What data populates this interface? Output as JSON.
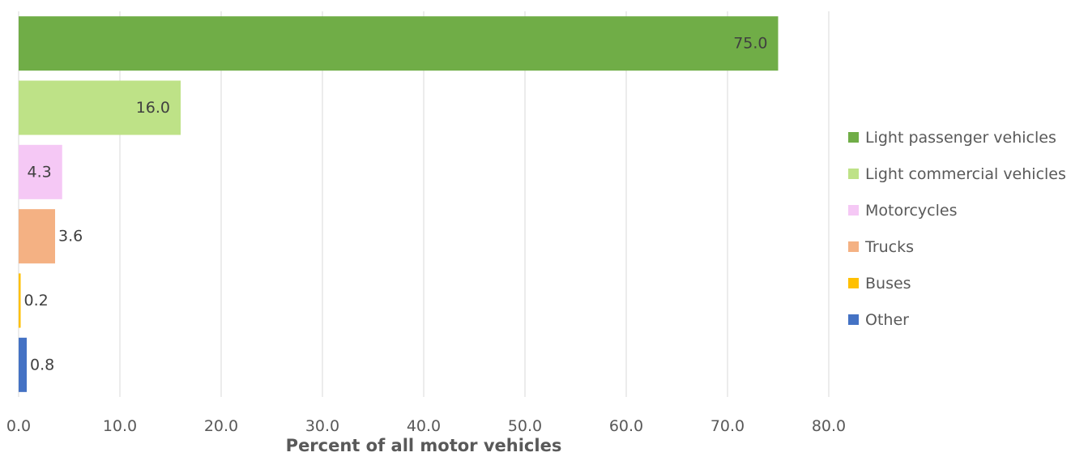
{
  "chart_data": {
    "type": "bar",
    "orientation": "horizontal",
    "categories": [
      "Light passenger vehicles",
      "Light commercial vehicles",
      "Motorcycles",
      "Trucks",
      "Buses",
      "Other"
    ],
    "values": [
      75.0,
      16.0,
      4.3,
      3.6,
      0.2,
      0.8
    ],
    "data_labels": [
      "75.0",
      "16.0",
      "4.3",
      "3.6",
      "0.2",
      "0.8"
    ],
    "colors": [
      "#70AD47",
      "#BEE287",
      "#F5C8F5",
      "#F4B183",
      "#FFC000",
      "#4472C4"
    ],
    "title": "",
    "xlabel": "Percent of all motor vehicles",
    "ylabel": "",
    "xlim": [
      0,
      80
    ],
    "x_ticks": [
      "0.0",
      "10.0",
      "20.0",
      "30.0",
      "40.0",
      "50.0",
      "60.0",
      "70.0",
      "80.0"
    ],
    "grid": true,
    "legend_position": "right"
  }
}
